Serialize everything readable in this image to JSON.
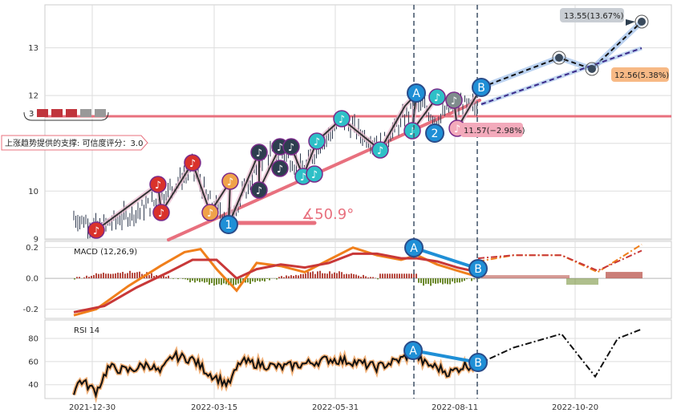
{
  "chart_data": {
    "type": "line",
    "x_ticks": [
      "2021-12-30",
      "2022-03-15",
      "2022-05-31",
      "2022-08-11",
      "2022-10-20"
    ],
    "panels": {
      "price": {
        "y_ticks": [
          9,
          10,
          11,
          12,
          13
        ],
        "ylim": [
          8.98,
          13.9
        ],
        "support_text": "上涨趋势提供的支撑: 可信度评分：3.0",
        "angle_label": "∡50.9°",
        "current_label": "11.57(−2.98%)",
        "target_high_label": "13.55(13.67%)",
        "target_mid_label": "12.56(5.38%)",
        "marker_A": "A",
        "marker_B": "B",
        "marker_1": "1",
        "marker_2": "2",
        "legend_stub": "3"
      },
      "macd": {
        "label": "MACD (12,26,9)",
        "y_ticks": [
          0.2,
          0.0,
          -0.2
        ],
        "ylim": [
          -0.26,
          0.24
        ],
        "marker_A": "A",
        "marker_B": "B"
      },
      "rsi": {
        "label": "RSI 14",
        "y_ticks": [
          40,
          60,
          80
        ],
        "ylim": [
          28,
          96
        ],
        "marker_A": "A",
        "marker_B": "B"
      }
    },
    "colors": {
      "grid": "#dddddd",
      "candle": "#2f3a4f",
      "support_line": "#e8707e",
      "macd_line": "#f07f1b",
      "signal_line": "#c83838",
      "hist_pos": "#b5473e",
      "hist_neg": "#6d8a2e",
      "rsi_line": "#111111",
      "rsi_glow": "#f2b27a",
      "ab_line": "#1f8fd6",
      "forecast_band": "#aac7ec"
    }
  }
}
